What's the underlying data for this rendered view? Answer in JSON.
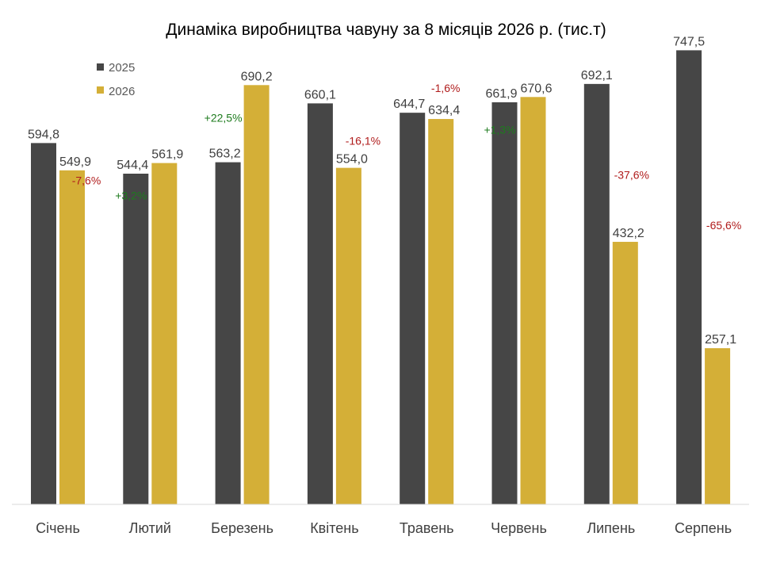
{
  "chart_data": {
    "type": "bar",
    "title": "Динаміка виробництва чавуну за 8 місяців 2026 р. (тис.т)",
    "categories": [
      "Січень",
      "Лютий",
      "Березень",
      "Квітень",
      "Травень",
      "Червень",
      "Липень",
      "Серпень"
    ],
    "series": [
      {
        "name": "2025",
        "color": "#464646",
        "values": [
          594.8,
          544.4,
          563.2,
          660.1,
          644.7,
          661.9,
          692.1,
          747.5
        ],
        "labels": [
          "594,8",
          "544,4",
          "563,2",
          "660,1",
          "644,7",
          "661,9",
          "692,1",
          "747,5"
        ]
      },
      {
        "name": "2026",
        "color": "#d4af37",
        "values": [
          549.9,
          561.9,
          690.2,
          554.0,
          634.4,
          670.6,
          432.2,
          257.1
        ],
        "labels": [
          "549,9",
          "561,9",
          "690,2",
          "554,0",
          "634,4",
          "670,6",
          "432,2",
          "257,1"
        ]
      }
    ],
    "changes": [
      "-7,6%",
      "+3,2%",
      "+22,5%",
      "-16,1%",
      "-1,6%",
      "+1,3%",
      "-37,6%",
      "-65,6%"
    ],
    "change_colors": {
      "positive": "#1e7b1e",
      "negative": "#b01c1c"
    },
    "ylim": [
      0,
      800
    ],
    "grid": false,
    "legend_position": "top-left"
  }
}
